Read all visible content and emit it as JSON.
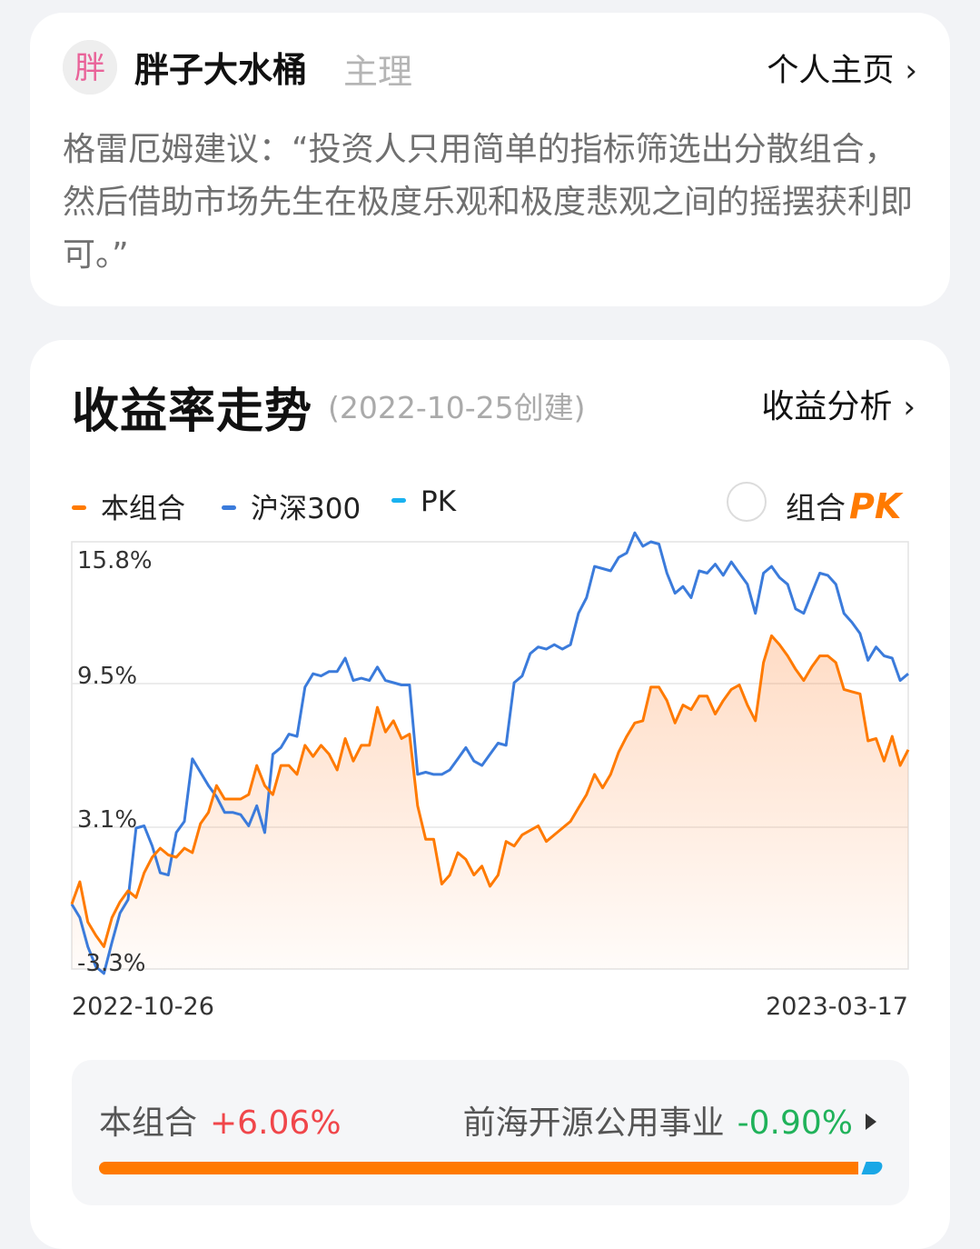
{
  "author": {
    "avatar_text": "胖",
    "name": "胖子大水桶",
    "role": "主理",
    "profile_link": "个人主页",
    "quote": "格雷厄姆建议：“投资人只用简单的指标筛选出分散组合，然后借助市场先生在极度乐观和极度悲观之间的摇摆获利即可。”"
  },
  "returns_section": {
    "title": "收益率走势",
    "created": "(2022-10-25创建)",
    "analysis_link": "收益分析",
    "legend": {
      "portfolio": "本组合",
      "csi300": "沪深300",
      "pk": "PK"
    },
    "pk_toggle_label": "组合",
    "pk_mark": "PK",
    "colors": {
      "portfolio": "#ff7a00",
      "csi300": "#3b7bdb",
      "pk": "#1ab2f0"
    }
  },
  "chart_data": {
    "type": "line",
    "x_start": "2022-10-26",
    "x_end": "2023-03-17",
    "y_ticks": [
      "15.8%",
      "9.5%",
      "3.1%",
      "-3.3%"
    ],
    "ylim": [
      -3.3,
      15.8
    ],
    "grid": true,
    "series": [
      {
        "name": "本组合",
        "values": [
          -0.4,
          0.6,
          -1.2,
          -1.8,
          -2.3,
          -1.0,
          -0.3,
          0.2,
          -0.1,
          1.0,
          1.7,
          2.1,
          1.8,
          1.7,
          2.1,
          1.9,
          3.2,
          3.7,
          4.9,
          4.3,
          4.3,
          4.3,
          4.5,
          5.8,
          4.9,
          4.5,
          5.8,
          5.8,
          5.4,
          6.7,
          6.2,
          6.7,
          6.3,
          5.6,
          7.0,
          6.0,
          6.7,
          6.7,
          8.4,
          7.3,
          7.8,
          7.0,
          7.2,
          4.0,
          2.5,
          2.5,
          0.5,
          0.9,
          1.9,
          1.6,
          0.9,
          1.3,
          0.4,
          0.9,
          2.4,
          2.2,
          2.7,
          2.9,
          3.1,
          2.4,
          2.7,
          3.0,
          3.3,
          3.9,
          4.5,
          5.4,
          4.8,
          5.4,
          6.4,
          7.1,
          7.7,
          7.8,
          9.3,
          9.3,
          8.7,
          7.7,
          8.5,
          8.3,
          8.9,
          8.9,
          8.1,
          8.7,
          9.2,
          9.4,
          8.5,
          7.8,
          10.4,
          11.6,
          11.2,
          10.7,
          10.1,
          9.6,
          10.2,
          10.7,
          10.7,
          10.4,
          9.2,
          9.1,
          9.0,
          6.9,
          7.0,
          6.0,
          7.1,
          5.8,
          6.5
        ]
      },
      {
        "name": "沪深300",
        "values": [
          -0.4,
          -1.0,
          -2.3,
          -3.2,
          -3.5,
          -2.1,
          -0.8,
          -0.2,
          3.0,
          3.1,
          2.2,
          1.0,
          0.9,
          2.8,
          3.3,
          6.1,
          5.5,
          4.9,
          4.4,
          3.7,
          3.7,
          3.6,
          3.1,
          4.0,
          2.8,
          6.3,
          6.6,
          7.2,
          7.1,
          9.3,
          9.9,
          9.8,
          10.0,
          10.0,
          10.6,
          9.6,
          9.7,
          9.6,
          10.2,
          9.6,
          9.5,
          9.4,
          9.4,
          5.4,
          5.5,
          5.4,
          5.4,
          5.6,
          6.1,
          6.6,
          6.0,
          5.8,
          6.3,
          6.8,
          6.7,
          9.5,
          9.8,
          10.8,
          11.1,
          11.0,
          11.2,
          11.0,
          11.2,
          12.6,
          13.3,
          14.7,
          14.6,
          14.5,
          15.1,
          15.3,
          16.2,
          15.6,
          15.8,
          15.7,
          14.4,
          13.5,
          13.8,
          13.3,
          14.5,
          14.4,
          14.8,
          14.3,
          14.9,
          14.4,
          13.9,
          12.6,
          14.4,
          14.7,
          14.2,
          13.9,
          12.8,
          12.6,
          13.5,
          14.4,
          14.3,
          13.9,
          12.6,
          12.2,
          11.7,
          10.5,
          11.1,
          10.7,
          10.6,
          9.6,
          9.9
        ]
      }
    ]
  },
  "comparison": {
    "left_label": "本组合",
    "left_value": "+6.06%",
    "right_label": "前海开源公用事业",
    "right_value": "-0.90%",
    "left_share": 0.975
  }
}
